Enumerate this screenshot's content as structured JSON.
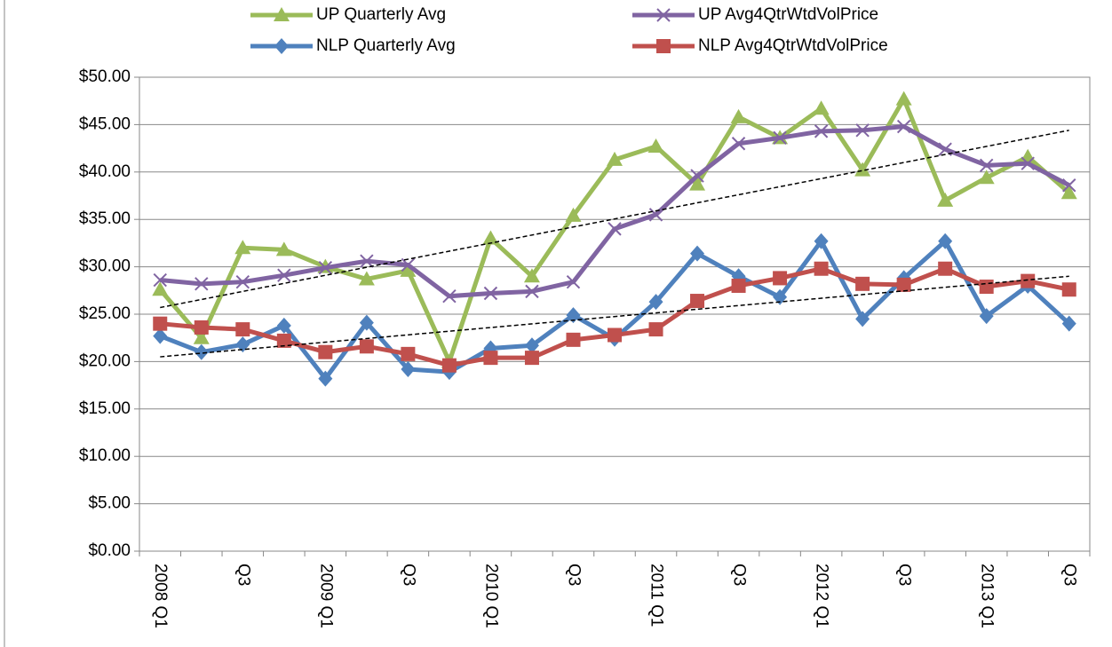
{
  "chart_data": {
    "type": "line",
    "categories": [
      "2008 Q1",
      null,
      "Q3",
      null,
      "2009 Q1",
      null,
      "Q3",
      null,
      "2010 Q1",
      null,
      "Q3",
      null,
      "2011 Q1",
      null,
      "Q3",
      null,
      "2012 Q1",
      null,
      "Q3",
      null,
      "2013 Q1",
      null,
      "Q3"
    ],
    "series": [
      {
        "name": "UP Quarterly Avg",
        "color": "#9bbb59",
        "marker": "triangle",
        "values": [
          27.6,
          22.5,
          32.0,
          31.8,
          30.0,
          28.7,
          29.6,
          20.0,
          33.0,
          29.0,
          35.4,
          41.3,
          42.7,
          38.7,
          45.8,
          43.6,
          46.7,
          40.2,
          47.7,
          37.0,
          39.4,
          41.6,
          37.8
        ]
      },
      {
        "name": "UP Avg4QtrWtdVolPrice",
        "color": "#8064a2",
        "marker": "x",
        "values": [
          28.6,
          28.2,
          28.4,
          29.1,
          29.9,
          30.6,
          30.2,
          26.9,
          27.2,
          27.4,
          28.4,
          34.0,
          35.5,
          39.6,
          43.0,
          43.6,
          44.3,
          44.4,
          44.8,
          42.4,
          40.7,
          40.9,
          38.6
        ]
      },
      {
        "name": "NLP Quarterly Avg",
        "color": "#4f81bd",
        "marker": "diamond",
        "values": [
          22.7,
          21.0,
          21.8,
          23.8,
          18.2,
          24.1,
          19.2,
          18.9,
          21.4,
          21.7,
          24.9,
          22.4,
          26.3,
          31.4,
          29.0,
          26.8,
          32.7,
          24.5,
          28.8,
          32.7,
          24.8,
          28.0,
          24.0
        ]
      },
      {
        "name": "NLP Avg4QtrWtdVolPrice",
        "color": "#c0504d",
        "marker": "square",
        "values": [
          24.0,
          23.6,
          23.4,
          22.2,
          21.0,
          21.6,
          20.8,
          19.6,
          20.4,
          20.4,
          22.3,
          22.8,
          23.4,
          26.4,
          28.0,
          28.8,
          29.8,
          28.2,
          28.1,
          29.8,
          27.9,
          28.5,
          27.6
        ]
      }
    ],
    "trendlines": [
      {
        "start": 25.7,
        "end": 44.4
      },
      {
        "start": 20.5,
        "end": 29.0
      }
    ],
    "ylim": [
      0,
      50
    ],
    "yticks": [
      {
        "value": 0,
        "label": "$0.00"
      },
      {
        "value": 5,
        "label": "$5.00"
      },
      {
        "value": 10,
        "label": "$10.00"
      },
      {
        "value": 15,
        "label": "$15.00"
      },
      {
        "value": 20,
        "label": "$20.00"
      },
      {
        "value": 25,
        "label": "$25.00"
      },
      {
        "value": 30,
        "label": "$30.00"
      },
      {
        "value": 35,
        "label": "$35.00"
      },
      {
        "value": 40,
        "label": "$40.00"
      },
      {
        "value": 45,
        "label": "$45.00"
      },
      {
        "value": 50,
        "label": "$50.00"
      }
    ],
    "grid": true,
    "legend": "top"
  }
}
